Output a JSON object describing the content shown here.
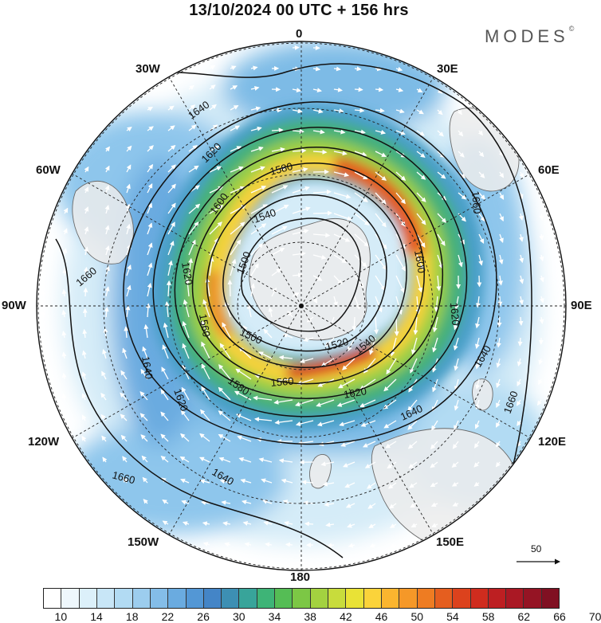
{
  "title": "13/10/2024  00 UTC  + 156 hrs",
  "brand": {
    "name": "MODES",
    "mark": "©"
  },
  "longitude_labels": [
    "0",
    "30E",
    "60E",
    "90E",
    "120E",
    "150E",
    "180",
    "150W",
    "120W",
    "90W",
    "60W",
    "30W"
  ],
  "contour_labels": [
    "1500",
    "1520",
    "1540",
    "1560",
    "1580",
    "1600",
    "1620",
    "1640",
    "1660"
  ],
  "colorbar": {
    "tick_labels": [
      "10",
      "14",
      "18",
      "22",
      "26",
      "30",
      "34",
      "38",
      "42",
      "46",
      "50",
      "54",
      "58",
      "62",
      "66",
      "70"
    ],
    "colors": [
      "#ffffff",
      "#eef7fc",
      "#dcf0fa",
      "#c8e6f7",
      "#b2dbf3",
      "#9ccdee",
      "#84bde8",
      "#6aabe0",
      "#5397d5",
      "#4485c7",
      "#3d8fb3",
      "#38a49a",
      "#3eb477",
      "#55bd55",
      "#7cc745",
      "#a3d240",
      "#c8dc3c",
      "#e9e236",
      "#fbd33a",
      "#fbb52f",
      "#f59828",
      "#ee7c22",
      "#e55e1f",
      "#dc421d",
      "#cf2c1e",
      "#bd1f22",
      "#aa1824",
      "#951424",
      "#801022"
    ]
  },
  "reference_vector": {
    "label": "50"
  },
  "colors": {
    "land": "#ececec",
    "coast": "#6a6a6a",
    "contour": "#111111",
    "vector": "#ffffff"
  }
}
